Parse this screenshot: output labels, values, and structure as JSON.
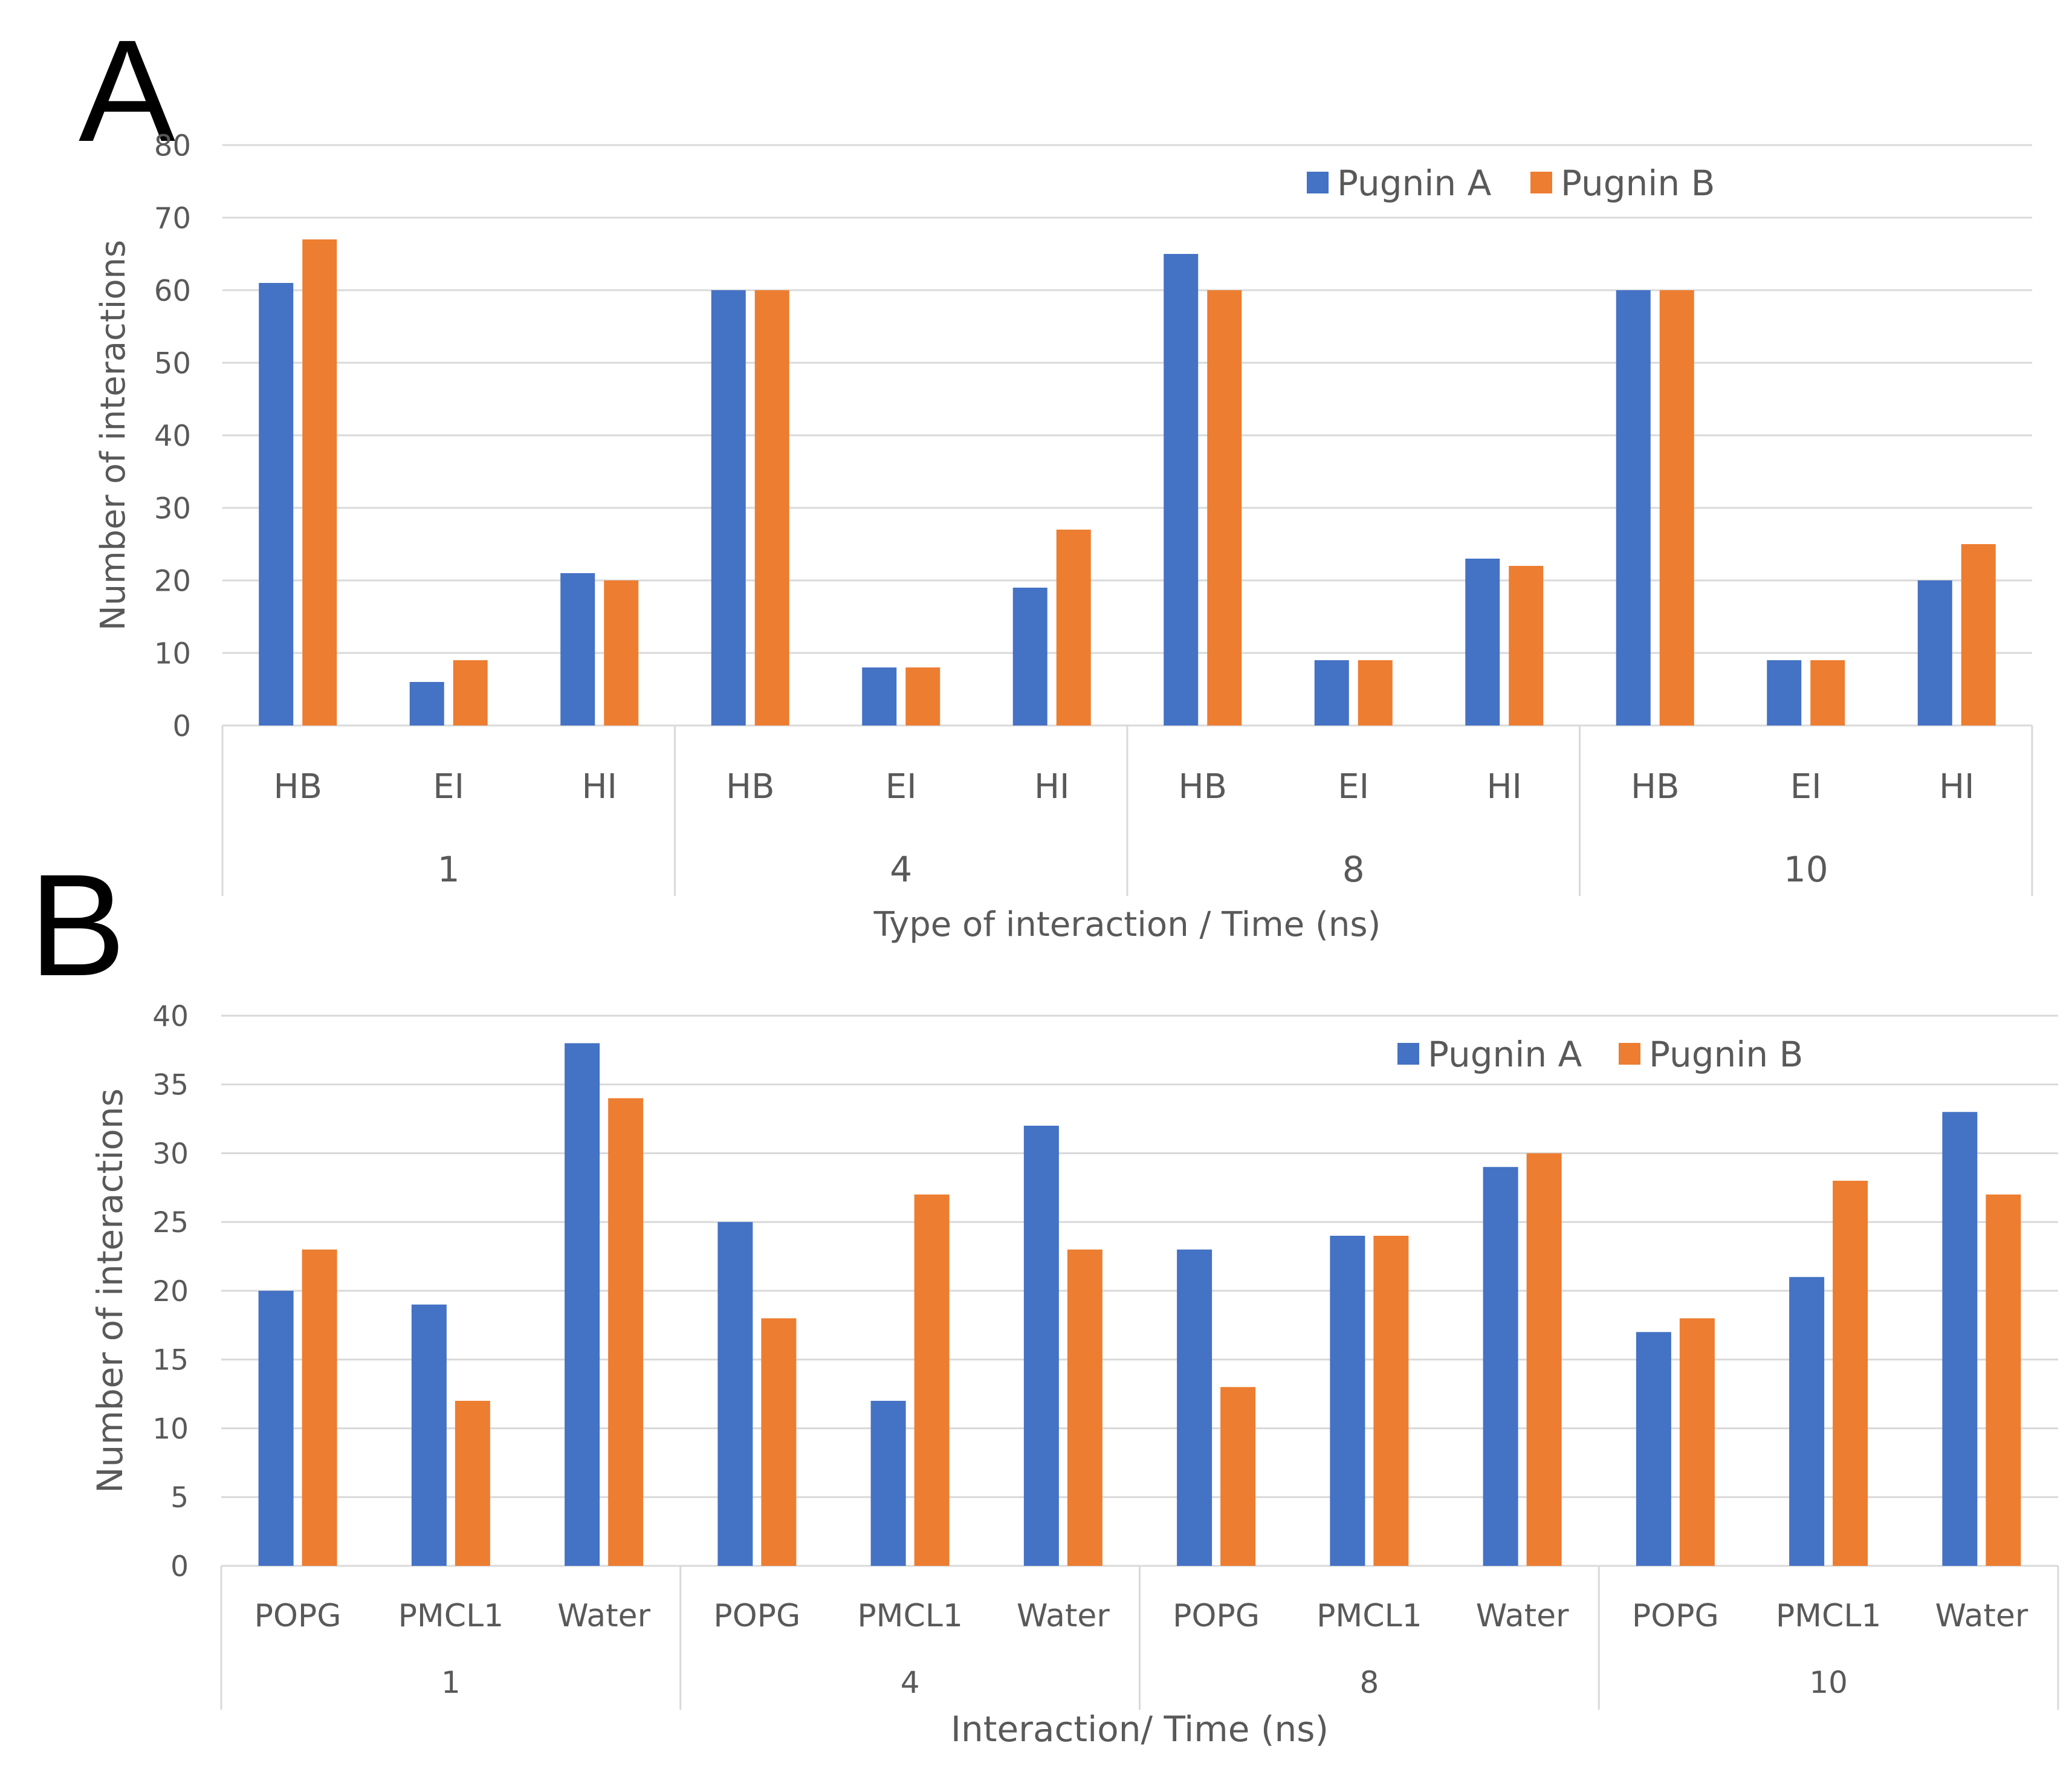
{
  "panels": {
    "a": "A",
    "b": "B"
  },
  "colors": {
    "pugnin_a": "#4472C4",
    "pugnin_b": "#ED7D31",
    "grid": "#D9D9D9",
    "text": "#595959"
  },
  "chart_data": [
    {
      "type": "bar",
      "panel": "A",
      "title": "",
      "ylabel": "Number of interactions",
      "xlabel": "Type of interaction / Time (ns)",
      "ylim": [
        0,
        80
      ],
      "yticks": [
        0,
        10,
        20,
        30,
        40,
        50,
        60,
        70,
        80
      ],
      "grid": true,
      "legend_position": "top-right",
      "groups": [
        "1",
        "4",
        "8",
        "10"
      ],
      "categories": [
        "HB",
        "EI",
        "HI",
        "HB",
        "EI",
        "HI",
        "HB",
        "EI",
        "HI",
        "HB",
        "EI",
        "HI"
      ],
      "series": [
        {
          "name": "Pugnin A",
          "values": [
            61,
            6,
            21,
            60,
            8,
            19,
            65,
            9,
            23,
            60,
            9,
            20
          ]
        },
        {
          "name": "Pugnin B",
          "values": [
            67,
            9,
            20,
            60,
            8,
            27,
            60,
            9,
            22,
            60,
            9,
            25
          ]
        }
      ]
    },
    {
      "type": "bar",
      "panel": "B",
      "title": "",
      "ylabel": "Number of interactions",
      "xlabel": "Interaction/ Time (ns)",
      "ylim": [
        0,
        40
      ],
      "yticks": [
        0,
        5,
        10,
        15,
        20,
        25,
        30,
        35,
        40
      ],
      "grid": true,
      "legend_position": "top-right",
      "groups": [
        "1",
        "4",
        "8",
        "10"
      ],
      "categories": [
        "POPG",
        "PMCL1",
        "Water",
        "POPG",
        "PMCL1",
        "Water",
        "POPG",
        "PMCL1",
        "Water",
        "POPG",
        "PMCL1",
        "Water"
      ],
      "series": [
        {
          "name": "Pugnin A",
          "values": [
            20,
            19,
            38,
            25,
            12,
            32,
            23,
            24,
            29,
            17,
            21,
            33
          ]
        },
        {
          "name": "Pugnin B",
          "values": [
            23,
            12,
            34,
            18,
            27,
            23,
            13,
            24,
            30,
            18,
            28,
            27
          ]
        }
      ]
    }
  ]
}
